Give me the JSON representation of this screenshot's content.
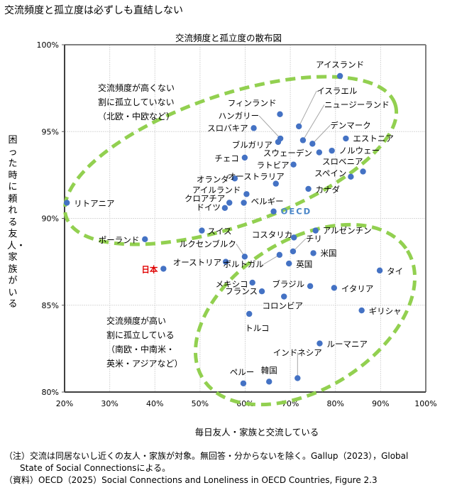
{
  "page": {
    "title": "交流頻度と孤立度は必ずしも直結しない",
    "notes": [
      "（注）交流は同居ないし近くの友人・家族が対象。無回答・分からないを除く。Gallup（2023），Global",
      "State of Social Connectionsによる。",
      "（資料）OECD（2025）Social Connections and Loneliness in OECD Countries, Figure 2.3"
    ]
  },
  "chart_data": {
    "type": "scatter",
    "title": "交流頻度と孤立度の散布図",
    "xlabel": "毎日友人・家族と交流している",
    "ylabel": "困った時に頼れる友人・家族がいる",
    "xlim": [
      20,
      100
    ],
    "ylim": [
      80,
      100
    ],
    "xticks": [
      "20%",
      "30%",
      "40%",
      "50%",
      "60%",
      "70%",
      "80%",
      "90%",
      "100%"
    ],
    "yticks": [
      "80%",
      "85%",
      "90%",
      "95%",
      "100%"
    ],
    "grid": true,
    "marker_color": "#4472C4",
    "highlight_color": "#E00000",
    "oecd_label_color": "#4A86C8",
    "ellipse_color": "#92D050",
    "points": [
      {
        "name": "アイスランド",
        "x": 81.0,
        "y": 98.2
      },
      {
        "name": "フィンランド",
        "x": 67.7,
        "y": 96.0
      },
      {
        "name": "イスラエル",
        "x": 71.9,
        "y": 95.3
      },
      {
        "name": "ニュージーランド",
        "x": 72.8,
        "y": 94.5
      },
      {
        "name": "ハンガリー",
        "x": 67.8,
        "y": 94.6
      },
      {
        "name": "スロバキア",
        "x": 61.9,
        "y": 95.2
      },
      {
        "name": "ブルガリア",
        "x": 67.3,
        "y": 94.4
      },
      {
        "name": "デンマーク",
        "x": 74.9,
        "y": 94.3
      },
      {
        "name": "エストニア",
        "x": 82.3,
        "y": 94.6
      },
      {
        "name": "スウェーデン",
        "x": 76.4,
        "y": 93.8
      },
      {
        "name": "ノルウェー",
        "x": 79.2,
        "y": 93.9
      },
      {
        "name": "チェコ",
        "x": 59.9,
        "y": 93.5
      },
      {
        "name": "ラトビア",
        "x": 70.7,
        "y": 93.1
      },
      {
        "name": "スロベニア",
        "x": 86.1,
        "y": 92.7
      },
      {
        "name": "オランダ",
        "x": 57.7,
        "y": 92.3
      },
      {
        "name": "オーストラリア",
        "x": 66.8,
        "y": 92.0
      },
      {
        "name": "スペイン",
        "x": 83.4,
        "y": 92.4
      },
      {
        "name": "カナダ",
        "x": 74.0,
        "y": 91.7
      },
      {
        "name": "アイルランド",
        "x": 60.3,
        "y": 91.4
      },
      {
        "name": "クロアチア",
        "x": 56.5,
        "y": 90.9
      },
      {
        "name": "ベルギー",
        "x": 59.7,
        "y": 90.9
      },
      {
        "name": "ドイツ",
        "x": 55.5,
        "y": 90.6
      },
      {
        "name": "OECD",
        "x": 66.3,
        "y": 90.4
      },
      {
        "name": "リトアニア",
        "x": 20.5,
        "y": 90.9
      },
      {
        "name": "ポーランド",
        "x": 37.8,
        "y": 88.8
      },
      {
        "name": "スイス",
        "x": 50.4,
        "y": 89.3
      },
      {
        "name": "アルゼンチン",
        "x": 75.6,
        "y": 89.3
      },
      {
        "name": "コスタリカ",
        "x": 70.8,
        "y": 88.9
      },
      {
        "name": "ルクセンブルク",
        "x": 59.9,
        "y": 87.8
      },
      {
        "name": "チリ",
        "x": 70.6,
        "y": 88.1
      },
      {
        "name": "米国",
        "x": 75.1,
        "y": 88.0
      },
      {
        "name": "ポルトガル",
        "x": 67.6,
        "y": 87.9
      },
      {
        "name": "オーストリア",
        "x": 55.7,
        "y": 87.5
      },
      {
        "name": "英国",
        "x": 69.7,
        "y": 87.4
      },
      {
        "name": "日本",
        "x": 41.9,
        "y": 87.1,
        "highlight": true
      },
      {
        "name": "タイ",
        "x": 89.8,
        "y": 87.0
      },
      {
        "name": "メキシコ",
        "x": 61.6,
        "y": 86.3
      },
      {
        "name": "フランス",
        "x": 63.7,
        "y": 85.8
      },
      {
        "name": "ブラジル",
        "x": 74.4,
        "y": 86.1
      },
      {
        "name": "イタリア",
        "x": 79.7,
        "y": 86.0
      },
      {
        "name": "コロンビア",
        "x": 68.6,
        "y": 85.5
      },
      {
        "name": "ギリシャ",
        "x": 85.8,
        "y": 84.7
      },
      {
        "name": "トルコ",
        "x": 60.9,
        "y": 84.5
      },
      {
        "name": "ルーマニア",
        "x": 76.5,
        "y": 82.8
      },
      {
        "name": "インドネシア",
        "x": 71.6,
        "y": 80.8
      },
      {
        "name": "ペルー",
        "x": 59.6,
        "y": 80.5
      },
      {
        "name": "韓国",
        "x": 65.3,
        "y": 80.6
      }
    ],
    "annotations": [
      {
        "id": "upper",
        "lines": [
          "交流頻度が高くない",
          "割に孤立していない",
          "（北欧・中欧など）"
        ]
      },
      {
        "id": "lower",
        "lines": [
          "交流頻度が高い",
          "割に孤立している",
          "（南欧・中南米・",
          "英米・アジアなど）"
        ]
      }
    ]
  }
}
